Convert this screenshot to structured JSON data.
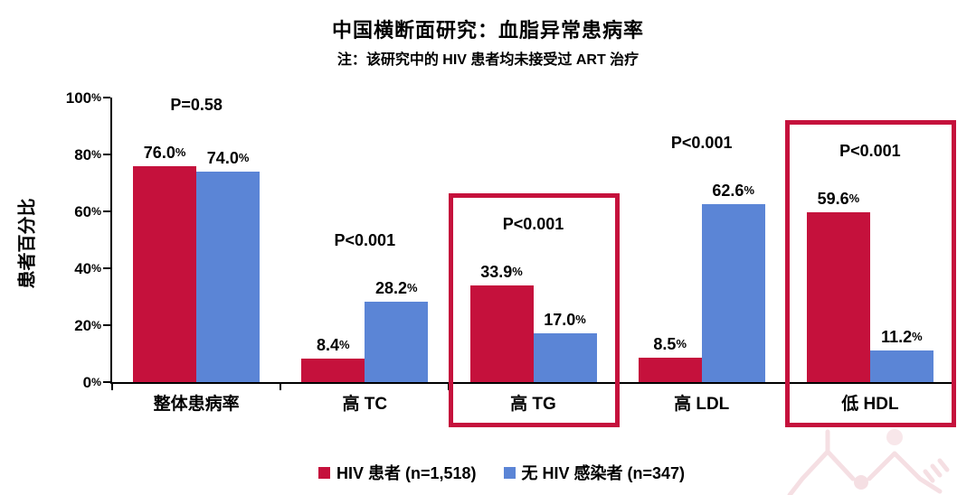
{
  "chart_data": {
    "type": "bar",
    "title": "中国横断面研究：血脂异常患病率",
    "subtitle": "注：该研究中的 HIV 患者均未接受过 ART 治疗",
    "ylabel": "患者百分比",
    "xlabel": "",
    "ylim": [
      0,
      100
    ],
    "yticks": [
      "0%",
      "20%",
      "40%",
      "60%",
      "80%",
      "100%"
    ],
    "grid": false,
    "legend_position": "bottom",
    "categories": [
      "整体患病率",
      "高 TC",
      "高 TG",
      "高 LDL",
      "低 HDL"
    ],
    "series": [
      {
        "name": "HIV 患者 (n=1,518)",
        "color": "#C5113C",
        "values": [
          76.0,
          8.4,
          33.9,
          8.5,
          59.6
        ]
      },
      {
        "name": "无 HIV 感染者 (n=347)",
        "color": "#5B85D6",
        "values": [
          74.0,
          28.2,
          17.0,
          62.6,
          11.2
        ]
      }
    ],
    "p_values": [
      "P=0.58",
      "P<0.001",
      "P<0.001",
      "P<0.001",
      "P<0.001"
    ],
    "highlight_indices": [
      2,
      4
    ],
    "highlight_color": "#C5113C",
    "axis_color": "#000000",
    "watermark": "molecule-structure"
  }
}
